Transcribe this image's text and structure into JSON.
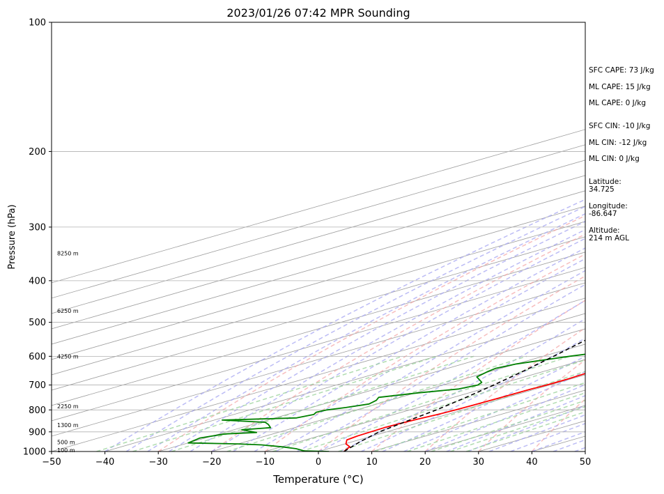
{
  "chart_data": {
    "type": "skew-t",
    "title": "2023/01/26 07:42 MPR Sounding",
    "xlabel": "Temperature (°C)",
    "ylabel": "Pressure (hPa)",
    "xlim": [
      -50,
      50
    ],
    "ylim": [
      1000,
      100
    ],
    "y_scale": "log",
    "x_ticks": [
      "−50",
      "−40",
      "−30",
      "−20",
      "−10",
      "0",
      "10",
      "20",
      "30",
      "40",
      "50"
    ],
    "y_ticks": [
      {
        "p": 100,
        "label": "100"
      },
      {
        "p": 200,
        "label": "200"
      },
      {
        "p": 300,
        "label": "300"
      },
      {
        "p": 400,
        "label": "400"
      },
      {
        "p": 500,
        "label": "500"
      },
      {
        "p": 600,
        "label": "600"
      },
      {
        "p": 700,
        "label": "700"
      },
      {
        "p": 800,
        "label": "800"
      },
      {
        "p": 900,
        "label": "900"
      },
      {
        "p": 1000,
        "label": "1000"
      }
    ],
    "grid": true,
    "height_labels": [
      {
        "p": 345,
        "label": "8250 m"
      },
      {
        "p": 470,
        "label": "6250 m"
      },
      {
        "p": 600,
        "label": "4250 m"
      },
      {
        "p": 785,
        "label": "2250 m"
      },
      {
        "p": 868,
        "label": "1300 m"
      },
      {
        "p": 950,
        "label": "500 m"
      },
      {
        "p": 993,
        "label": "100 m"
      }
    ],
    "series": [
      {
        "role": "temperature",
        "color": "#ff0000",
        "points": [
          [
            1000,
            4.8
          ],
          [
            990,
            4.0
          ],
          [
            975,
            2.8
          ],
          [
            960,
            0.2
          ],
          [
            940,
            -2.2
          ],
          [
            920,
            -2.8
          ],
          [
            900,
            -3.0
          ],
          [
            880,
            -3.2
          ],
          [
            860,
            -3.0
          ],
          [
            840,
            -2.5
          ],
          [
            820,
            -1.8
          ],
          [
            800,
            -1.4
          ],
          [
            780,
            -1.2
          ],
          [
            750,
            -1.0
          ],
          [
            720,
            -0.9
          ],
          [
            700,
            -0.6
          ],
          [
            680,
            -0.5
          ],
          [
            660,
            -0.8
          ],
          [
            640,
            -1.3
          ],
          [
            620,
            -2.0
          ],
          [
            600,
            -2.8
          ],
          [
            580,
            -3.8
          ],
          [
            560,
            -4.8
          ],
          [
            540,
            -5.8
          ],
          [
            520,
            -6.8
          ],
          [
            500,
            -8.0
          ],
          [
            480,
            -9.0
          ],
          [
            460,
            -9.9
          ],
          [
            440,
            -10.8
          ],
          [
            420,
            -11.6
          ],
          [
            400,
            -12.6
          ],
          [
            380,
            -13.7
          ],
          [
            360,
            -14.8
          ],
          [
            340,
            -16.0
          ],
          [
            320,
            -17.2
          ],
          [
            300,
            -18.4
          ],
          [
            290,
            -19.0
          ],
          [
            280,
            -19.2
          ],
          [
            270,
            -19.2
          ],
          [
            258,
            -19.4
          ]
        ]
      },
      {
        "role": "dewpoint",
        "color": "#008000",
        "points": [
          [
            1000,
            2.0
          ],
          [
            997,
            -3.0
          ],
          [
            985,
            -6.0
          ],
          [
            975,
            -10.0
          ],
          [
            965,
            -15.0
          ],
          [
            960,
            -20.0
          ],
          [
            955,
            -30.0
          ],
          [
            930,
            -31.0
          ],
          [
            910,
            -29.0
          ],
          [
            903,
            -24.0
          ],
          [
            890,
            -28.5
          ],
          [
            880,
            -24.5
          ],
          [
            865,
            -27.0
          ],
          [
            855,
            -29.0
          ],
          [
            845,
            -38.5
          ],
          [
            835,
            -26.0
          ],
          [
            820,
            -25.0
          ],
          [
            810,
            -26.0
          ],
          [
            800,
            -25.5
          ],
          [
            790,
            -23.5
          ],
          [
            775,
            -21.5
          ],
          [
            760,
            -22.5
          ],
          [
            748,
            -24.0
          ],
          [
            730,
            -19.5
          ],
          [
            715,
            -14.5
          ],
          [
            700,
            -13.5
          ],
          [
            690,
            -14.5
          ],
          [
            670,
            -19.0
          ],
          [
            650,
            -20.5
          ],
          [
            640,
            -21.0
          ],
          [
            625,
            -20.0
          ],
          [
            600,
            -15.0
          ],
          [
            580,
            -10.0
          ],
          [
            565,
            -10.8
          ],
          [
            550,
            -11.0
          ],
          [
            535,
            -11.7
          ],
          [
            520,
            -11.2
          ],
          [
            505,
            -9.5
          ],
          [
            490,
            -11.7
          ],
          [
            475,
            -13.8
          ],
          [
            465,
            -11.9
          ],
          [
            455,
            -9.7
          ],
          [
            445,
            -10.6
          ],
          [
            430,
            -12.0
          ],
          [
            415,
            -13.3
          ],
          [
            405,
            -14.1
          ],
          [
            395,
            -14.7
          ],
          [
            380,
            -15.5
          ],
          [
            370,
            -16.6
          ],
          [
            360,
            -17.4
          ],
          [
            350,
            -17.5
          ],
          [
            340,
            -18.8
          ],
          [
            330,
            -20.6
          ],
          [
            320,
            -21.9
          ],
          [
            312,
            -23.3
          ],
          [
            305,
            -24.2
          ],
          [
            297,
            -25.4
          ],
          [
            288,
            -27.6
          ],
          [
            280,
            -29.3
          ],
          [
            270,
            -31.5
          ],
          [
            263,
            -33.0
          ],
          [
            258,
            -34.5
          ]
        ]
      },
      {
        "role": "parcel",
        "color": "#000000",
        "style": "dashed",
        "points": [
          [
            1000,
            4.8
          ],
          [
            950,
            1.5
          ],
          [
            900,
            -1.4
          ],
          [
            850,
            -3.2
          ],
          [
            800,
            -5.0
          ],
          [
            750,
            -7.5
          ],
          [
            700,
            -10.5
          ],
          [
            650,
            -14.0
          ],
          [
            600,
            -18.0
          ],
          [
            550,
            -22.6
          ],
          [
            500,
            -27.5
          ],
          [
            450,
            -32.8
          ],
          [
            400,
            -39.0
          ],
          [
            350,
            -46.0
          ],
          [
            300,
            -53.5
          ],
          [
            280,
            -56.5
          ],
          [
            262,
            -59.5
          ]
        ]
      }
    ],
    "annotations": [
      "SFC CAPE: 73 J/kg",
      "ML CAPE: 15 J/kg",
      "ML CAPE: 0 J/kg",
      "SFC CIN: -10 J/kg",
      "ML CIN: -12 J/kg",
      "ML CIN: 0 J/kg",
      "Latitude:",
      "34.725",
      "Longitude:",
      "-86.647",
      "Altitude:",
      "214 m AGL"
    ],
    "background_lines": {
      "isotherms": {
        "color": "#9c9c9c",
        "interval_c": 10
      },
      "dry_adiabats": {
        "color": "#f4a3a3",
        "style": "dashed"
      },
      "moist_adiabats": {
        "color": "#a6a6f2",
        "style": "dashed"
      },
      "mixing_ratio": {
        "color": "#9cd39c",
        "style": "dashed"
      },
      "height_markers": {
        "color": "#d48ed4"
      }
    }
  }
}
